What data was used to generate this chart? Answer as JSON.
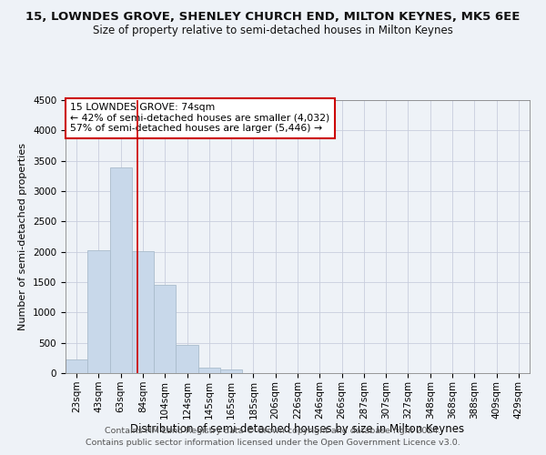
{
  "title": "15, LOWNDES GROVE, SHENLEY CHURCH END, MILTON KEYNES, MK5 6EE",
  "subtitle": "Size of property relative to semi-detached houses in Milton Keynes",
  "xlabel": "Distribution of semi-detached houses by size in Milton Keynes",
  "ylabel": "Number of semi-detached properties",
  "footnote1": "Contains HM Land Registry data © Crown copyright and database right 2024.",
  "footnote2": "Contains public sector information licensed under the Open Government Licence v3.0.",
  "bar_labels": [
    "23sqm",
    "43sqm",
    "63sqm",
    "84sqm",
    "104sqm",
    "124sqm",
    "145sqm",
    "165sqm",
    "185sqm",
    "206sqm",
    "226sqm",
    "246sqm",
    "266sqm",
    "287sqm",
    "307sqm",
    "327sqm",
    "348sqm",
    "368sqm",
    "388sqm",
    "409sqm",
    "429sqm"
  ],
  "bar_values": [
    230,
    2020,
    3390,
    2010,
    1450,
    470,
    90,
    60,
    0,
    0,
    0,
    0,
    0,
    0,
    0,
    0,
    0,
    0,
    0,
    0,
    0
  ],
  "bar_color": "#c8d8ea",
  "bar_edge_color": "#aabccc",
  "grid_color": "#c8cedd",
  "annotation_line1": "15 LOWNDES GROVE: 74sqm",
  "annotation_line2": "← 42% of semi-detached houses are smaller (4,032)",
  "annotation_line3": "57% of semi-detached houses are larger (5,446) →",
  "annotation_box_color": "#ffffff",
  "annotation_box_edge_color": "#cc0000",
  "vline_x": 2.75,
  "vline_color": "#cc0000",
  "ylim": [
    0,
    4500
  ],
  "yticks": [
    0,
    500,
    1000,
    1500,
    2000,
    2500,
    3000,
    3500,
    4000,
    4500
  ],
  "background_color": "#eef2f7",
  "title_fontsize": 9.5,
  "subtitle_fontsize": 8.5,
  "xlabel_fontsize": 8.5,
  "ylabel_fontsize": 8,
  "tick_fontsize": 7.5,
  "annotation_fontsize": 7.8,
  "footnote_fontsize": 6.8
}
